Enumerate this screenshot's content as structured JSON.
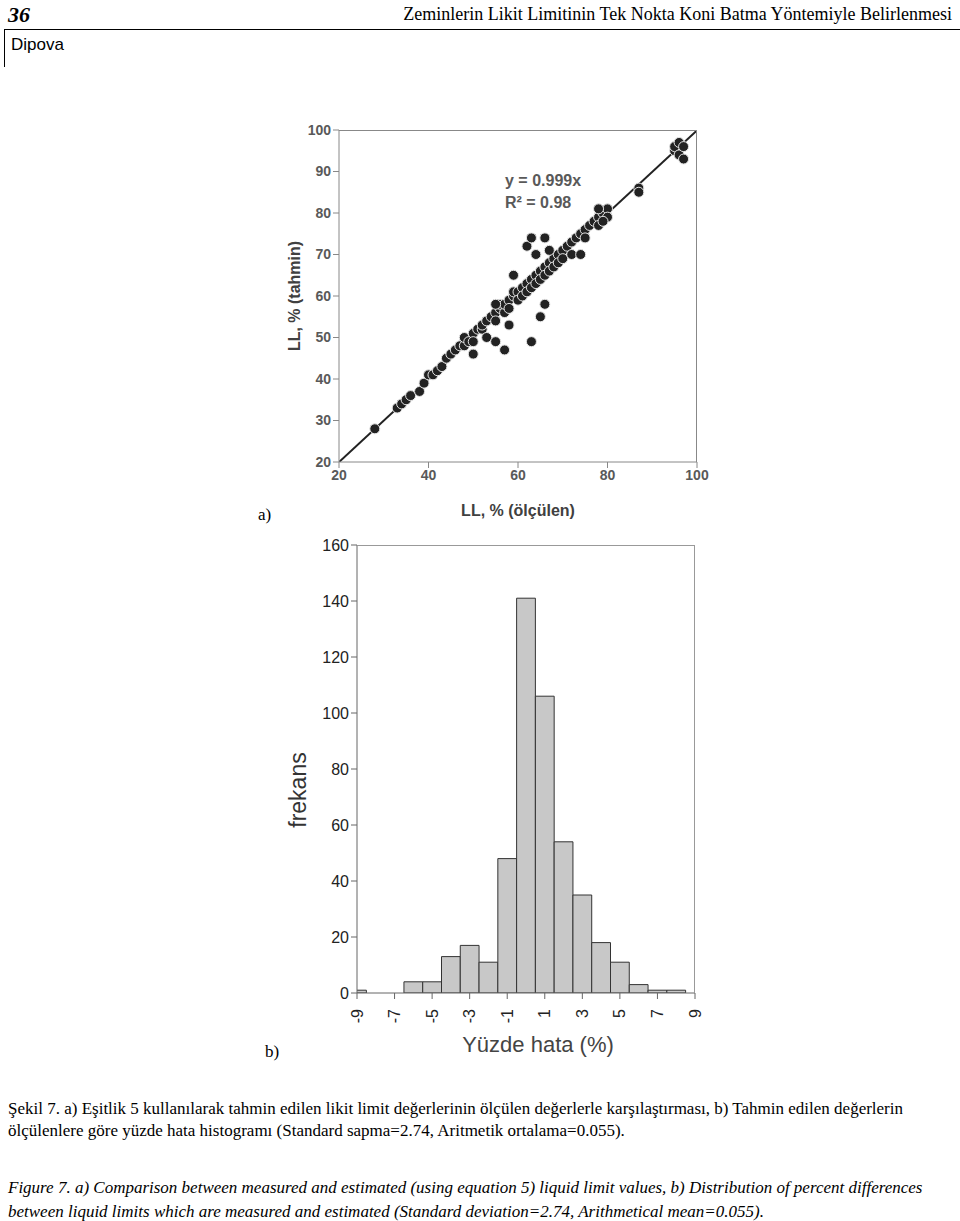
{
  "header": {
    "page": "36",
    "title": "Zeminlerin Likit Limitinin Tek Nokta Koni Batma Yöntemiyle Belirlenmesi",
    "author": "Dipova"
  },
  "panels": [
    "a)",
    "b)"
  ],
  "chart_data": [
    {
      "type": "scatter",
      "x_label": "LL, % (ölçülen)",
      "y_label": "LL, % (tahmin)",
      "annotations": [
        "y = 0.999x",
        "R² = 0.98"
      ],
      "trendline_slope": 0.999,
      "color": "#222222",
      "marker": "circle",
      "grid": false,
      "xlim": [
        20,
        100
      ],
      "xticks": [
        20,
        40,
        60,
        80,
        100
      ],
      "ylim": [
        20,
        100
      ],
      "yticks": [
        20,
        30,
        40,
        50,
        60,
        70,
        80,
        90,
        100
      ],
      "x": [
        28,
        33,
        34,
        35,
        36,
        38,
        39,
        40,
        41,
        42,
        43,
        44,
        45,
        46,
        47,
        48,
        48,
        49,
        50,
        50,
        51,
        52,
        52,
        53,
        54,
        55,
        55,
        56,
        56,
        57,
        57,
        58,
        58,
        59,
        59,
        60,
        60,
        61,
        61,
        62,
        62,
        63,
        63,
        64,
        64,
        65,
        65,
        66,
        66,
        67,
        67,
        68,
        68,
        69,
        69,
        70,
        70,
        71,
        72,
        73,
        74,
        75,
        75,
        76,
        77,
        78,
        78,
        79,
        80,
        80,
        87,
        87,
        95,
        95,
        96,
        96,
        97,
        97,
        53,
        55,
        58,
        57,
        62,
        63,
        66,
        64,
        65,
        63,
        66,
        55,
        59,
        50,
        67,
        72,
        74,
        78,
        79
      ],
      "values": [
        28,
        33,
        34,
        35,
        36,
        37,
        39,
        41,
        41,
        42,
        43,
        45,
        46,
        47,
        48,
        48,
        50,
        49,
        51,
        49,
        52,
        52,
        53,
        54,
        55,
        56,
        54,
        57,
        58,
        56,
        58,
        59,
        57,
        60,
        61,
        61,
        59,
        62,
        60,
        63,
        61,
        64,
        62,
        65,
        63,
        66,
        64,
        67,
        65,
        68,
        66,
        69,
        67,
        70,
        68,
        71,
        69,
        72,
        73,
        74,
        75,
        76,
        74,
        77,
        78,
        79,
        77,
        80,
        81,
        79,
        86,
        85,
        95,
        96,
        97,
        94,
        96,
        93,
        50,
        49,
        53,
        47,
        72,
        74,
        74,
        70,
        55,
        49,
        58,
        58,
        65,
        46,
        71,
        70,
        70,
        81,
        78
      ]
    },
    {
      "type": "histogram",
      "x_label": "Yüzde hata (%)",
      "y_label": "frekans",
      "color": "#c8c8c8",
      "grid": false,
      "bins": [
        -9.5,
        -8.5,
        -7.5,
        -6.5,
        -5.5,
        -4.5,
        -3.5,
        -2.5,
        -1.5,
        -0.5,
        0.5,
        1.5,
        2.5,
        3.5,
        4.5,
        5.5,
        6.5,
        7.5,
        8.5
      ],
      "values": [
        1,
        0,
        0,
        4,
        4,
        13,
        17,
        11,
        48,
        141,
        106,
        54,
        35,
        18,
        11,
        3,
        1,
        1
      ],
      "xlim": [
        -9,
        9
      ],
      "xticks": [
        -9,
        -7,
        -5,
        -3,
        -1,
        1,
        3,
        5,
        7,
        9
      ],
      "ylim": [
        0,
        160
      ],
      "yticks": [
        0,
        20,
        40,
        60,
        80,
        100,
        120,
        140,
        160
      ]
    }
  ],
  "caption": {
    "tr": "Şekil 7. a) Eşitlik 5 kullanılarak tahmin edilen likit limit değerlerinin ölçülen değerlerle karşılaştırması, b) Tahmin edilen değerlerin ölçülenlere göre yüzde hata histogramı (Standard sapma=2.74, Aritmetik ortalama=0.055).",
    "en": "Figure 7. a) Comparison between measured and estimated (using equation 5) liquid limit values, b) Distribution of percent differences between liquid limits which are measured and estimated (Standard deviation=2.74, Arithmetical mean=0.055)."
  }
}
